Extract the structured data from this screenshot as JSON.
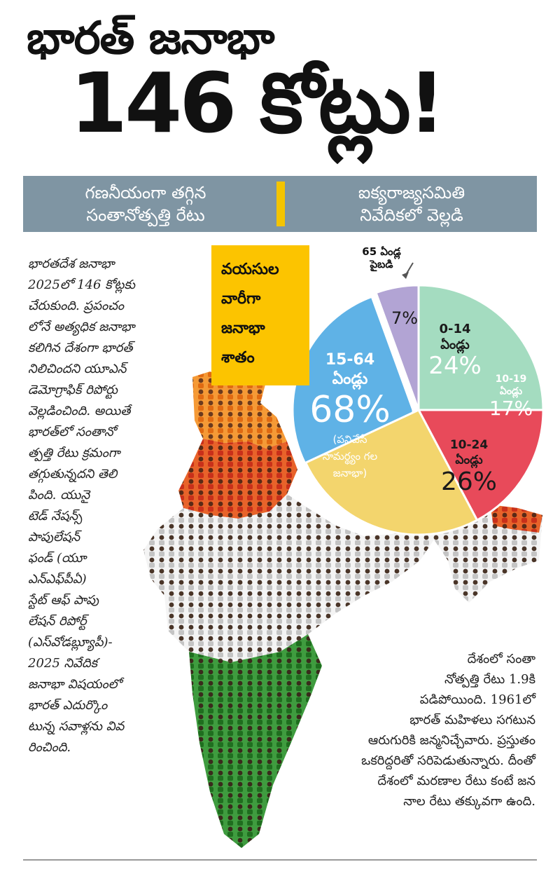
{
  "headline": {
    "line1": "భారత్ జనాభా",
    "line2": "146 కోట్లు!"
  },
  "banner": {
    "left": "గణనీయంగా తగ్గిన\nసంతానోత్పత్తి రేటు",
    "right": "ఐక్యరాజ్యసమితి\nనివేదికలో వెల్లడి"
  },
  "age_label": "వయసుల\nవారీగా\nజనాభా\nశాతం",
  "intro_text": "భారతదేశ జనాభా\n2025లో 146 కోట్లకు\nచేరుకుంది. ప్రపంచం\nలోనే అత్యధిక జనాభా\nకలిగిన దేశంగా భారత్\nనిలిచిందని యూఎన్\nడెమోగ్రాఫిక్ రిపోర్టు\nవెల్లడించింది. అయితే\nభారత్‌లో సంతానో\nత్పత్తి రేటు క్రమంగా\nతగ్గుతున్నదని తెలి\nపింది. యునై\nటెడ్ నేషన్స్\nపాపులేషన్\nఫండ్ (యూ\nఎన్ఎఫ్‌పీఏ)\nస్టేట్ ఆఫ్ పాపు\nలేషన్ రిపోర్ట్\n(ఎస్‌వోడబ్ల్యూపీ)-\n2025 నివేదిక\nజనాభా విషయంలో\nభారత్ ఎదుర్కొం\nటున్న సవాళ్లను వివ\nరించింది.",
  "bottom_text": "దేశంలో సంతా\nనోత్పత్తి రేటు 1.9కి\nపడిపోయింది. 1961లో\nభారత్ మహిళలు సగటున\nఆరుగురికి జన్మనిచ్చేవారు. ప్రస్తుతం\nఒకరిద్దరితో సరిపెడుతున్నారు. దీంతో\nదేశంలో మరణాల రేటు కంటే జన\nనాల రేటు తక్కువగా ఉంది.",
  "chart_data": {
    "type": "pie",
    "slices": [
      {
        "label": "0-14\nఏండ్లు",
        "value": 24,
        "display": "24%",
        "color": "#a4dcc0"
      },
      {
        "label": "10-19\nఏండ్లు",
        "value": 17,
        "display": "17%",
        "color": "#e84a5a"
      },
      {
        "label": "10-24\nఏండ్లు",
        "value": 26,
        "display": "26%",
        "color": "#f3d56d"
      },
      {
        "label": "15-64\nఏండ్లు",
        "value": 68,
        "display": "68%",
        "note": "(పనిచేసే\nసామర్థ్యం గల\nజనాభా)",
        "color": "#5fb2e6"
      },
      {
        "label": "",
        "value": 7,
        "display": "7%",
        "color": "#b2a4d4"
      }
    ],
    "callout": "65 ఏండ్ల\nపైబడి"
  },
  "colors": {
    "saffron": "#f08a1e",
    "red": "#e2421e",
    "white": "#f2f2f2",
    "green": "#2f8f2f",
    "grey": "#c9c9c9",
    "banner": "#7f95a3",
    "yellow": "#fcc400"
  }
}
